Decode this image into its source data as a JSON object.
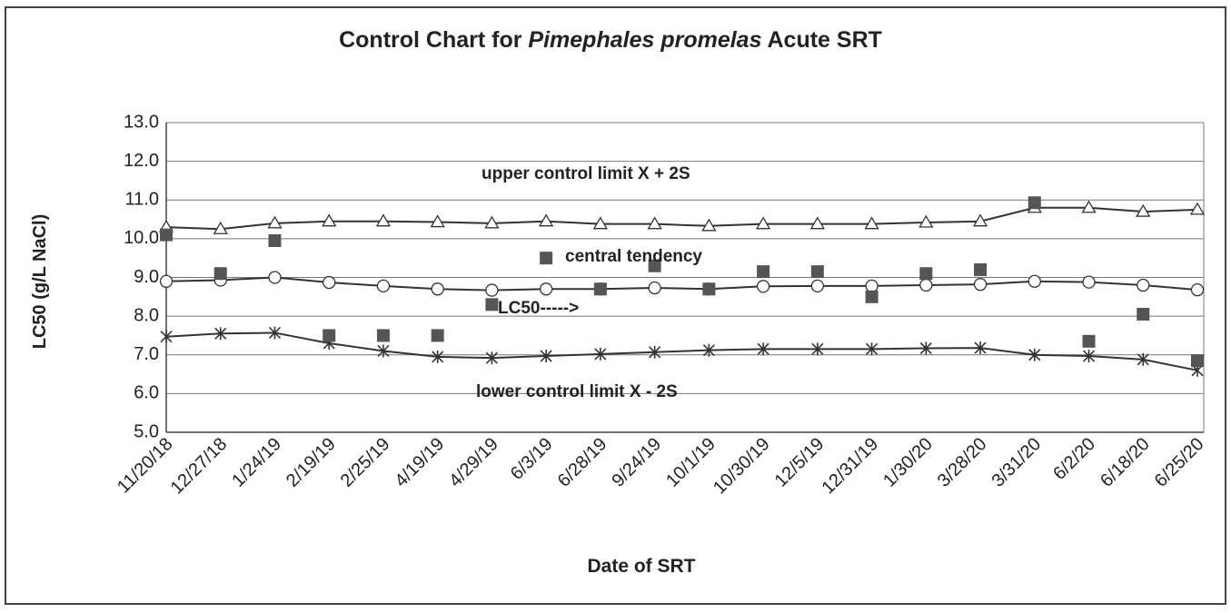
{
  "chart_data": {
    "type": "line",
    "title": [
      "Control Chart for ",
      "Pimephales promelas",
      " Acute SRT"
    ],
    "x_label": "Date of SRT",
    "y_label": "LC50 (g/L NaCl)",
    "categories": [
      "11/20/18",
      "12/27/18",
      "1/24/19",
      "2/19/19",
      "2/25/19",
      "4/19/19",
      "4/29/19",
      "6/3/19",
      "6/28/19",
      "9/24/19",
      "10/1/19",
      "10/30/19",
      "12/5/19",
      "12/31/19",
      "1/30/20",
      "3/28/20",
      "3/31/20",
      "6/2/20",
      "6/18/20",
      "6/25/20"
    ],
    "ylim": [
      5,
      13
    ],
    "yticks": [
      {
        "value": 5,
        "label": "5.0"
      },
      {
        "value": 6,
        "label": "6.0"
      },
      {
        "value": 7,
        "label": "7.0"
      },
      {
        "value": 8,
        "label": "8.0"
      },
      {
        "value": 9,
        "label": "9.0"
      },
      {
        "value": 10,
        "label": "10.0"
      },
      {
        "value": 11,
        "label": "11.0"
      },
      {
        "value": 12,
        "label": "12.0"
      },
      {
        "value": 13,
        "label": "13.0"
      }
    ],
    "grid": true,
    "series": [
      {
        "marker": "triangle",
        "line": true,
        "color": "#333333",
        "values": [
          10.3,
          10.25,
          10.4,
          10.45,
          10.45,
          10.43,
          10.4,
          10.45,
          10.38,
          10.38,
          10.33,
          10.38,
          10.38,
          10.38,
          10.42,
          10.45,
          10.8,
          10.8,
          10.7,
          10.75
        ]
      },
      {
        "marker": "circle",
        "line": true,
        "color": "#333333",
        "values": [
          8.9,
          8.93,
          9.0,
          8.87,
          8.78,
          8.7,
          8.67,
          8.7,
          8.7,
          8.73,
          8.7,
          8.77,
          8.78,
          8.78,
          8.8,
          8.82,
          8.9,
          8.88,
          8.8,
          8.68
        ]
      },
      {
        "marker": "star",
        "line": true,
        "color": "#333333",
        "values": [
          7.47,
          7.55,
          7.57,
          7.3,
          7.1,
          6.95,
          6.92,
          6.97,
          7.02,
          7.07,
          7.12,
          7.15,
          7.15,
          7.15,
          7.17,
          7.18,
          7.0,
          6.97,
          6.88,
          6.6
        ]
      },
      {
        "marker": "square",
        "line": false,
        "color": "#555555",
        "values": [
          10.1,
          9.1,
          9.95,
          7.5,
          7.5,
          7.5,
          8.3,
          9.5,
          8.7,
          9.3,
          8.7,
          9.15,
          9.15,
          8.5,
          9.1,
          9.2,
          10.93,
          7.35,
          8.05,
          6.85
        ]
      }
    ],
    "annotations": [
      "upper control limit X + 2S",
      "central tendency",
      "LC50----->",
      "lower control limit X - 2S"
    ]
  }
}
